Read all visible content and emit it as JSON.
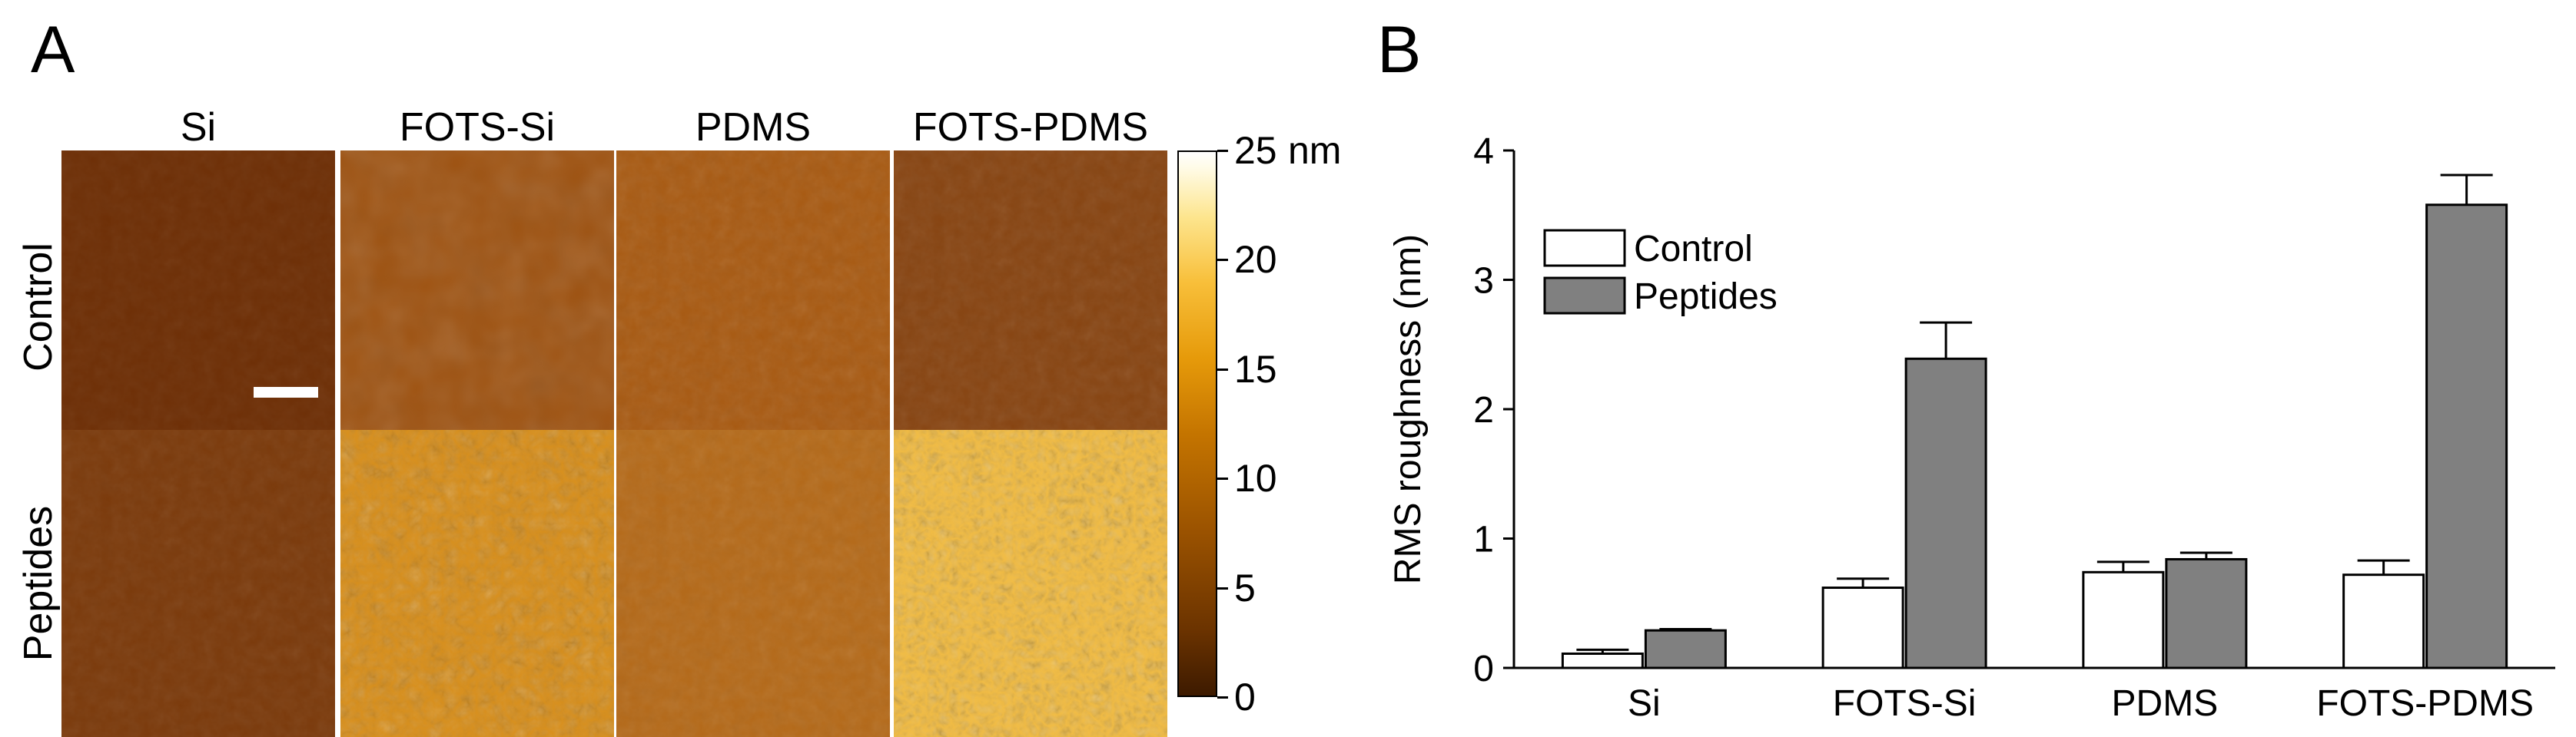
{
  "panel_a": {
    "letter": "A",
    "columns": [
      "Si",
      "FOTS-Si",
      "PDMS",
      "FOTS-PDMS"
    ],
    "rows": [
      "Control",
      "Peptides"
    ],
    "colorbar": {
      "unit": "nm",
      "ticks": [
        "25",
        "20",
        "15",
        "10",
        "5",
        "0"
      ],
      "range": [
        0,
        25
      ]
    }
  },
  "panel_b": {
    "letter": "B"
  },
  "chart_data": {
    "type": "bar",
    "categories": [
      "Si",
      "FOTS-Si",
      "PDMS",
      "FOTS-PDMS"
    ],
    "series": [
      {
        "name": "Control",
        "values": [
          0.11,
          0.62,
          0.74,
          0.72
        ],
        "errors": [
          0.03,
          0.07,
          0.08,
          0.11
        ],
        "color": "#ffffff"
      },
      {
        "name": "Peptides",
        "values": [
          0.29,
          2.39,
          0.84,
          3.58
        ],
        "errors": [
          0.01,
          0.28,
          0.05,
          0.23
        ],
        "color": "#808080"
      }
    ],
    "xlabel": "",
    "ylabel": "RMS roughness (nm)",
    "ylim": [
      0,
      4
    ],
    "yticks": [
      "0",
      "1",
      "2",
      "3",
      "4"
    ],
    "legend_position": "top-left",
    "grid": false
  }
}
